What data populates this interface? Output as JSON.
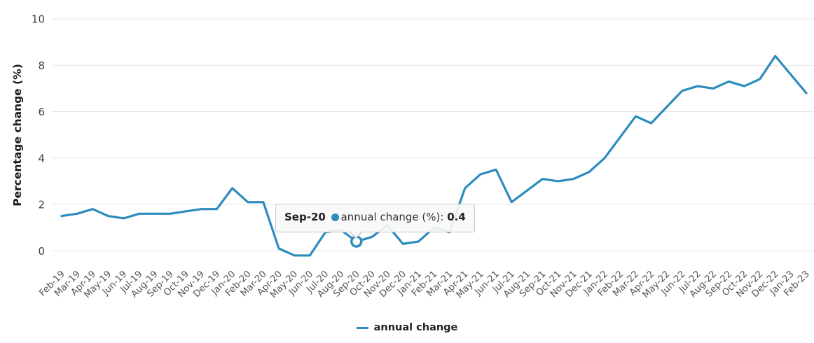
{
  "chart_data": {
    "type": "line",
    "title": "",
    "xlabel": "",
    "ylabel": "Percentage change (%)",
    "ylim": [
      0,
      10
    ],
    "yticks": [
      0,
      2,
      4,
      6,
      8,
      10
    ],
    "grid": true,
    "legend_position": "bottom-center",
    "categories": [
      "Feb-19",
      "Mar-19",
      "Apr-19",
      "May-19",
      "Jun-19",
      "Jul-19",
      "Aug-19",
      "Sep-19",
      "Oct-19",
      "Nov-19",
      "Dec-19",
      "Jan-20",
      "Feb-20",
      "Mar-20",
      "Apr-20",
      "May-20",
      "Jun-20",
      "Jul-20",
      "Aug-20",
      "Sep-20",
      "Oct-20",
      "Nov-20",
      "Dec-20",
      "Jan-21",
      "Feb-21",
      "Mar-21",
      "Apr-21",
      "May-21",
      "Jun-21",
      "Jul-21",
      "Aug-21",
      "Sep-21",
      "Oct-21",
      "Nov-21",
      "Dec-21",
      "Jan-22",
      "Feb-22",
      "Mar-22",
      "Apr-22",
      "May-22",
      "Jun-22",
      "Jul-22",
      "Aug-22",
      "Sep-22",
      "Oct-22",
      "Nov-22",
      "Dec-22",
      "Jan-23",
      "Feb-23"
    ],
    "series": [
      {
        "name": "annual change",
        "color": "#2d8cbd",
        "values": [
          1.5,
          1.6,
          1.8,
          1.5,
          1.4,
          1.6,
          1.6,
          1.6,
          1.7,
          1.8,
          1.8,
          2.7,
          2.1,
          2.1,
          0.1,
          -0.2,
          -0.2,
          0.8,
          0.9,
          0.4,
          0.6,
          1.1,
          0.3,
          0.4,
          1.0,
          0.8,
          2.7,
          3.3,
          3.5,
          2.1,
          2.6,
          3.1,
          3.0,
          3.1,
          3.4,
          4.0,
          4.9,
          5.8,
          5.5,
          6.2,
          6.9,
          7.1,
          7.0,
          7.3,
          7.1,
          7.4,
          8.4,
          7.6,
          6.8
        ]
      }
    ]
  },
  "tooltip": {
    "month": "Sep-20",
    "series_label": "annual change (%):",
    "value": "0.4",
    "point_index": 19,
    "point_value": 0.4
  },
  "axis_colors": {
    "gridline": "#e4e4e4",
    "tick_text": "#54565a"
  }
}
